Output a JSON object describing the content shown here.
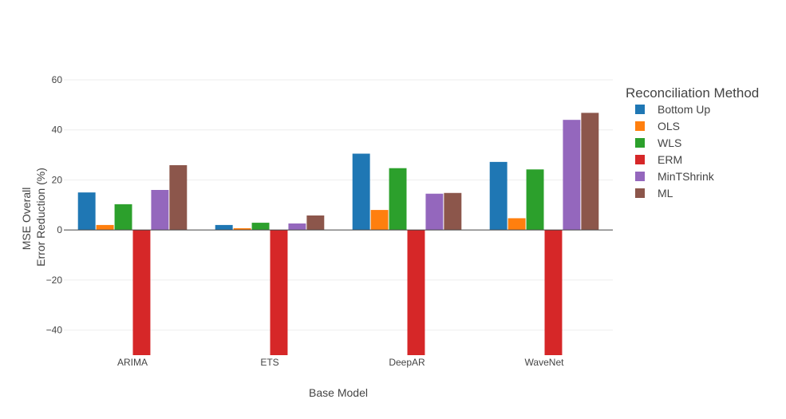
{
  "chart_data": {
    "type": "bar",
    "xlabel": "Base Model",
    "ylabel_lines": [
      "MSE Overall",
      "Error Reduction (%)"
    ],
    "ylim": [
      -50,
      60
    ],
    "yticks": [
      -40,
      -20,
      0,
      20,
      40,
      60
    ],
    "ytick_labels": [
      "−40",
      "−20",
      "0",
      "20",
      "40",
      "60"
    ],
    "grid": true,
    "legend_title": "Reconciliation Method",
    "legend_position": "right",
    "categories": [
      "ARIMA",
      "ETS",
      "DeepAR",
      "WaveNet"
    ],
    "series": [
      {
        "name": "Bottom Up",
        "color": "#1f77b4",
        "values": [
          15,
          2,
          30.5,
          27.2
        ]
      },
      {
        "name": "OLS",
        "color": "#ff7f0e",
        "values": [
          2,
          0.7,
          8,
          4.7
        ]
      },
      {
        "name": "WLS",
        "color": "#2ca02c",
        "values": [
          10.3,
          2.9,
          24.7,
          24.2
        ]
      },
      {
        "name": "ERM",
        "color": "#d62728",
        "values": [
          -50,
          -50,
          -50,
          -50
        ]
      },
      {
        "name": "MinTShrink",
        "color": "#9467bd",
        "values": [
          16,
          2.6,
          14.5,
          44
        ]
      },
      {
        "name": "ML",
        "color": "#8c564b",
        "values": [
          25.9,
          5.8,
          14.8,
          46.8
        ]
      }
    ]
  }
}
